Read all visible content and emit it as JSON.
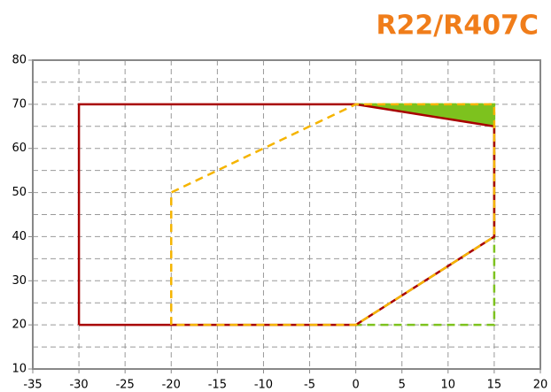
{
  "chart_data": {
    "type": "line",
    "title": "R22/R407C",
    "xlim": [
      -35,
      20
    ],
    "xticks": [
      -35,
      -30,
      -25,
      -20,
      -15,
      -10,
      -5,
      0,
      5,
      10,
      15,
      20
    ],
    "ylim": [
      10,
      80
    ],
    "yticks": [
      10,
      20,
      30,
      40,
      50,
      60,
      70,
      80
    ],
    "yminorticks": [
      15,
      25,
      35,
      45,
      55,
      65,
      75
    ],
    "grid": true,
    "series": [
      {
        "color": "#7dc21e",
        "fill": true,
        "dashed": false,
        "x": [
          0,
          15,
          15
        ],
        "values": [
          70,
          70,
          65
        ]
      },
      {
        "color": "#7dc21e",
        "fill": false,
        "dashed": true,
        "x": [
          0,
          15,
          15,
          0
        ],
        "values": [
          70,
          70,
          20,
          20
        ]
      },
      {
        "color": "#a80000",
        "fill": false,
        "dashed": false,
        "x": [
          -30,
          -30,
          0,
          15,
          15,
          0,
          -30
        ],
        "values": [
          20,
          70,
          70,
          65,
          40,
          20,
          20
        ]
      },
      {
        "color": "#f5b400",
        "fill": false,
        "dashed": true,
        "x": [
          -20,
          -20,
          0,
          15,
          15,
          0,
          -20
        ],
        "values": [
          20,
          50,
          70,
          70,
          40,
          20,
          20
        ]
      }
    ]
  }
}
